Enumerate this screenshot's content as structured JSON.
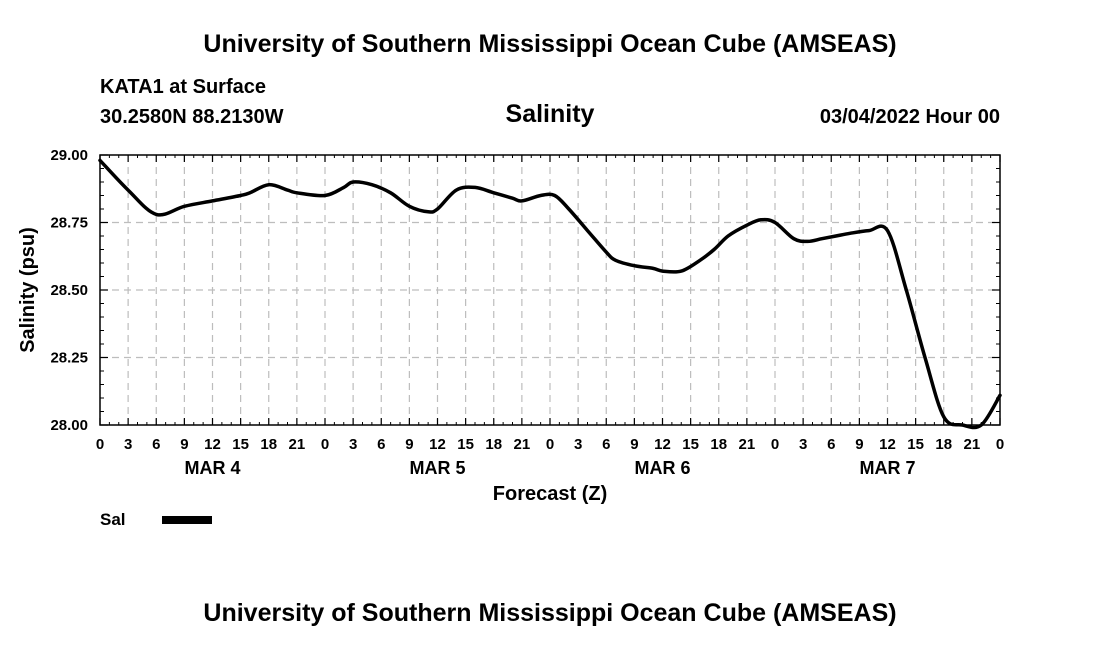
{
  "header": {
    "title_top": "University of Southern Mississippi Ocean Cube (AMSEAS)",
    "station": "KATA1 at Surface",
    "coords": "30.2580N  88.2130W",
    "datetime": "03/04/2022 Hour 00"
  },
  "footer": {
    "title_bottom": "University of Southern Mississippi Ocean Cube (AMSEAS)"
  },
  "colors": {
    "line": "#000000",
    "grid": "#bdbdbd",
    "background": "#ffffff"
  },
  "chart_data": {
    "type": "line",
    "title": "Salinity",
    "xlabel": "Forecast (Z)",
    "ylabel": "Salinity (psu)",
    "ylim": [
      28.0,
      29.0
    ],
    "xlim": [
      0,
      96
    ],
    "x_unit": "hours since 03/04/2022 00Z",
    "y_ticks": [
      29.0,
      28.75,
      28.5,
      28.25,
      28.0
    ],
    "y_tick_labels": [
      "29.00",
      "28.75",
      "28.50",
      "28.25",
      "28.00"
    ],
    "x_tick_labels": [
      "0",
      "3",
      "6",
      "9",
      "12",
      "15",
      "18",
      "21",
      "0",
      "3",
      "6",
      "9",
      "12",
      "15",
      "18",
      "21",
      "0",
      "3",
      "6",
      "9",
      "12",
      "15",
      "18",
      "21",
      "0",
      "3",
      "6",
      "9",
      "12",
      "15",
      "18",
      "21",
      "0"
    ],
    "day_labels": [
      {
        "label": "MAR 4",
        "hour": 12
      },
      {
        "label": "MAR 5",
        "hour": 36
      },
      {
        "label": "MAR 6",
        "hour": 60
      },
      {
        "label": "MAR 7",
        "hour": 84
      }
    ],
    "grid": true,
    "legend": {
      "position": "bottom-left",
      "entries": [
        "Sal"
      ]
    },
    "series": [
      {
        "name": "Sal",
        "x": [
          0,
          3,
          6,
          9,
          12,
          15,
          16,
          18,
          20,
          21,
          24,
          26,
          27,
          29,
          31,
          33,
          35,
          36,
          38,
          40,
          42,
          44,
          45,
          47,
          48.5,
          50,
          52,
          54,
          55,
          57,
          59,
          60,
          62,
          64,
          65.5,
          67,
          69,
          70.5,
          72,
          74,
          75.5,
          77,
          78.5,
          80,
          82,
          84,
          86,
          88,
          90,
          92,
          94,
          96
        ],
        "values": [
          28.98,
          28.87,
          28.78,
          28.81,
          28.83,
          28.85,
          28.86,
          28.89,
          28.87,
          28.86,
          28.85,
          28.88,
          28.9,
          28.89,
          28.86,
          28.81,
          28.79,
          28.8,
          28.87,
          28.88,
          28.86,
          28.84,
          28.83,
          28.85,
          28.85,
          28.8,
          28.72,
          28.64,
          28.61,
          28.59,
          28.58,
          28.57,
          28.57,
          28.61,
          28.65,
          28.7,
          28.74,
          28.76,
          28.75,
          28.69,
          28.68,
          28.69,
          28.7,
          28.71,
          28.72,
          28.72,
          28.5,
          28.25,
          28.03,
          28.0,
          28.0,
          28.11
        ]
      }
    ]
  }
}
